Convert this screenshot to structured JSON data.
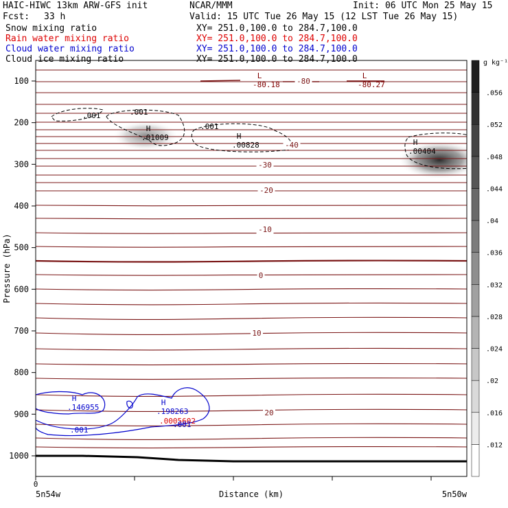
{
  "header": {
    "model": "HAIC-HIWC 13km ARW-GFS init",
    "org": "NCAR/MMM",
    "init": "Init: 06 UTC Mon 25 May 15",
    "fcst_label": "Fcst:",
    "fcst_value": "33 h",
    "valid": "Valid: 15 UTC Tue 26 May 15 (12 LST Tue 26 May 15)"
  },
  "fields": [
    {
      "name": "Snow mixing ratio",
      "xy": "XY= 251.0,100.0 to 284.7,100.0",
      "color": "#000000"
    },
    {
      "name": "Rain water mixing ratio",
      "xy": "XY= 251.0,100.0 to 284.7,100.0",
      "color": "#dd0000"
    },
    {
      "name": "Cloud water mixing ratio",
      "xy": "XY= 251.0,100.0 to 284.7,100.0",
      "color": "#0000cc"
    },
    {
      "name": "Cloud ice mixing ratio",
      "xy": "XY= 251.0,100.0 to 284.7,100.0",
      "color": "#000000"
    }
  ],
  "chart_data": {
    "type": "heatmap",
    "ylabel": "Pressure (hPa)",
    "xlabel": "Distance (km)",
    "ylim": [
      1050,
      50
    ],
    "y_ticks": [
      100,
      200,
      300,
      400,
      500,
      600,
      700,
      800,
      900,
      1000
    ],
    "x_tick_labels": {
      "start": "0",
      "left": "5n54w",
      "right": "5n50w"
    },
    "colorbar": {
      "unit": "g kg⁻¹",
      "ticks": [
        ".012",
        ".016",
        ".02",
        ".024",
        ".028",
        ".032",
        ".036",
        ".04",
        ".044",
        ".048",
        ".052",
        ".056"
      ],
      "range": [
        0.008,
        0.06
      ]
    },
    "temperature_isotherms": [
      {
        "label": "-80",
        "value": -80
      },
      {
        "label": "-40",
        "value": -40
      },
      {
        "label": "-30",
        "value": -30
      },
      {
        "label": "-20",
        "value": -20
      },
      {
        "label": "-10",
        "value": -10
      },
      {
        "label": "0",
        "value": 0
      },
      {
        "label": "10",
        "value": 10
      },
      {
        "label": "20",
        "value": 20
      }
    ],
    "extrema": [
      {
        "kind": "L",
        "value": "-80.18",
        "color": "#800000"
      },
      {
        "kind": "L",
        "value": "-80.27",
        "color": "#800000"
      },
      {
        "kind": "H",
        "value": ".01009",
        "color": "#000000"
      },
      {
        "kind": "H",
        "value": ".00828",
        "color": "#000000"
      },
      {
        "kind": "H",
        "value": ".00404",
        "color": "#000000"
      },
      {
        "kind": "H",
        "value": ".146955",
        "color": "#0000cc"
      },
      {
        "kind": "H",
        "value": ".198263",
        "color": "#0000cc"
      },
      {
        "kind": "",
        "value": ".0005602",
        "color": "#dd0000"
      }
    ],
    "contour_labels": [
      {
        "text": ".001",
        "color": "#000000"
      },
      {
        "text": ".001",
        "color": "#000000"
      },
      {
        "text": ".001",
        "color": "#000000"
      },
      {
        "text": ".001",
        "color": "#0000cc"
      },
      {
        "text": ".001",
        "color": "#0000cc"
      }
    ]
  }
}
